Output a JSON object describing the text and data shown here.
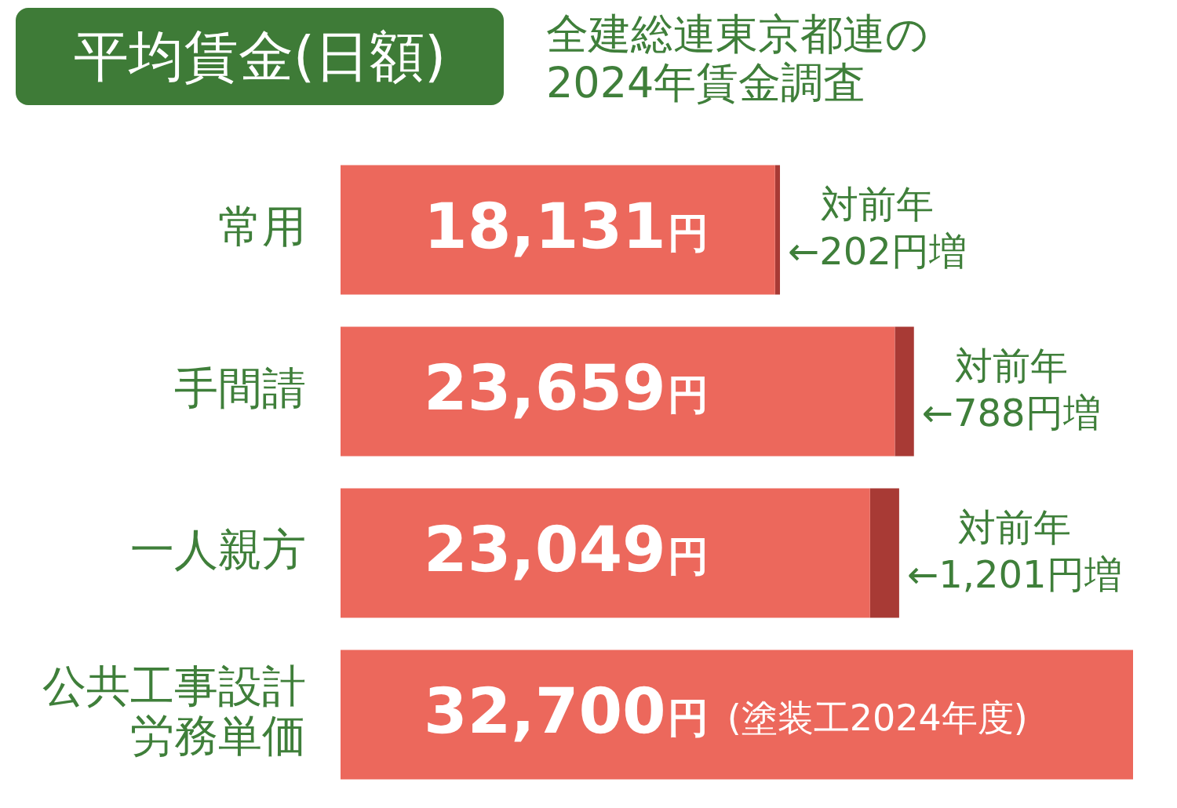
{
  "chart_data": {
    "type": "bar",
    "title": "平均賃金(日額)",
    "subtitle": "全建総連東京都連の2024年賃金調査",
    "orientation": "horizontal",
    "stacked": true,
    "categories": [
      "常用",
      "手間請",
      "一人親方",
      "公共工事設計労務単価"
    ],
    "series": [
      {
        "color": "#ec685c",
        "values": [
          17929,
          22871,
          21848,
          32700
        ]
      },
      {
        "color": "#a83a35",
        "values": [
          202,
          788,
          1201,
          null
        ],
        "value_labels": [
          "対前年\n←202円増",
          "対前年\n←788円増",
          "対前年\n←1,201円増",
          null
        ]
      }
    ],
    "totals": [
      "18,131円",
      "23,659円",
      "23,049円",
      "32,700円"
    ],
    "annotations": [
      {
        "text": "(塗装工2024年度)",
        "y": "公共工事設計労務単価"
      }
    ]
  }
}
